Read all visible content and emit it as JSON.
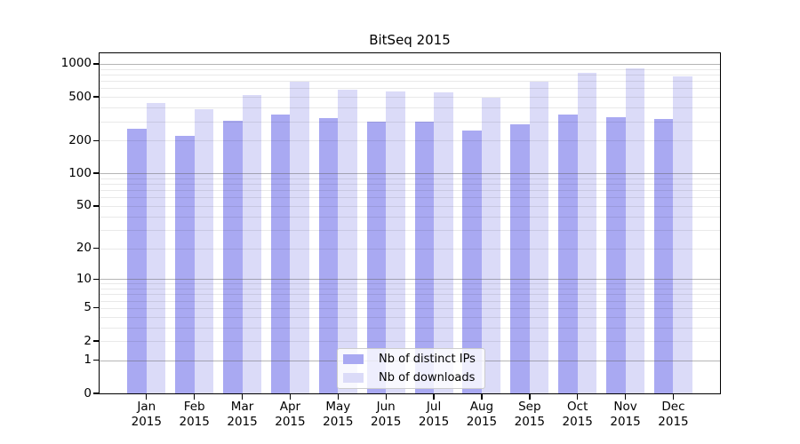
{
  "chart_data": {
    "type": "bar",
    "title": "BitSeq 2015",
    "year": "2015",
    "months": [
      "Jan",
      "Feb",
      "Mar",
      "Apr",
      "May",
      "Jun",
      "Jul",
      "Aug",
      "Sep",
      "Oct",
      "Nov",
      "Dec"
    ],
    "series": [
      {
        "name": "Nb of distinct IPs",
        "color": "#a9a9f2",
        "values": [
          255,
          222,
          303,
          347,
          323,
          296,
          300,
          249,
          282,
          346,
          329,
          315
        ]
      },
      {
        "name": "Nb of downloads",
        "color": "#dbdbf8",
        "values": [
          440,
          388,
          524,
          690,
          583,
          565,
          549,
          495,
          694,
          835,
          907,
          770
        ]
      }
    ],
    "y_axis": {
      "scale": "log-like (log10 of value+1)",
      "tick_labels": [
        "0",
        "1",
        "2",
        "5",
        "10",
        "20",
        "50",
        "100",
        "200",
        "500",
        "1000"
      ],
      "tick_values": [
        0,
        1,
        2,
        5,
        10,
        20,
        50,
        100,
        200,
        500,
        1000
      ],
      "range": [
        0,
        1300
      ]
    },
    "x_axis": {
      "tick_labels_line1": [
        "Jan",
        "Feb",
        "Mar",
        "Apr",
        "May",
        "Jun",
        "Jul",
        "Aug",
        "Sep",
        "Oct",
        "Nov",
        "Dec"
      ],
      "tick_labels_line2": [
        "2015",
        "2015",
        "2015",
        "2015",
        "2015",
        "2015",
        "2015",
        "2015",
        "2015",
        "2015",
        "2015",
        "2015"
      ]
    },
    "legend": {
      "entries": [
        "Nb of distinct IPs",
        "Nb of downloads"
      ],
      "position": "bottom-center"
    },
    "grid": {
      "major_color": "#b0b0b0",
      "minor_color": "#e8e8e8",
      "major_at": [
        1,
        10,
        100,
        1000
      ]
    },
    "frame_color": "#000000"
  }
}
